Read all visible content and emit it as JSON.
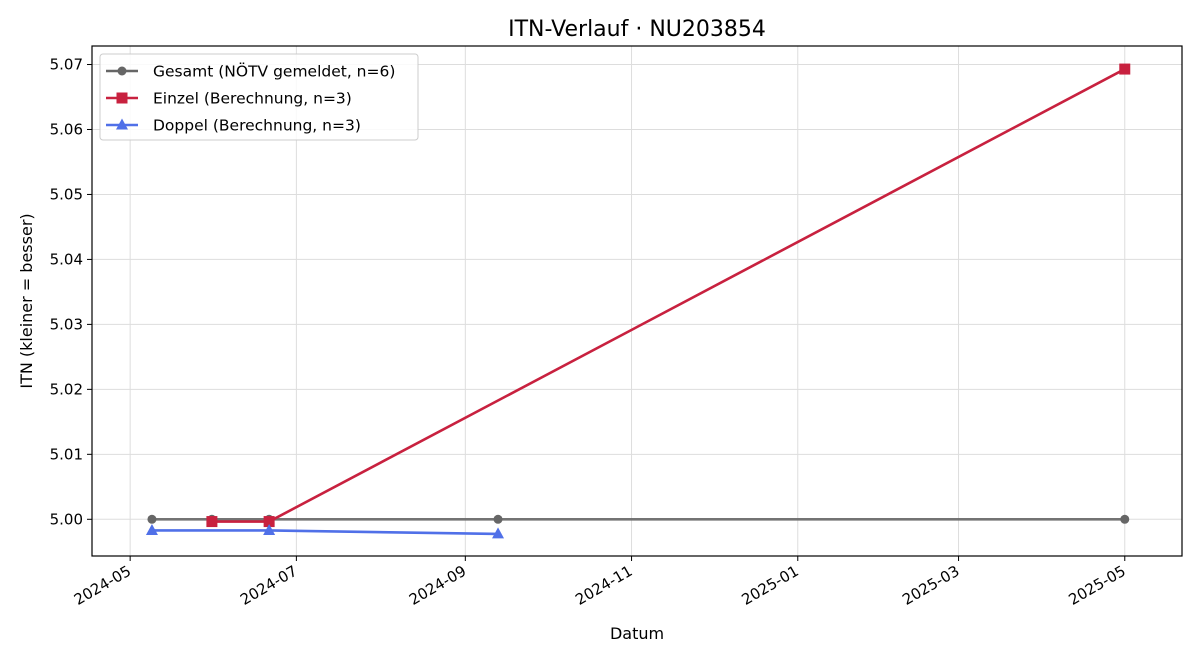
{
  "chart_data": {
    "type": "line",
    "title": "ITN-Verlauf · NU203854",
    "xlabel": "Datum",
    "ylabel": "ITN  (kleiner = besser)",
    "x_type": "date",
    "xlim": [
      "2024-04-17",
      "2025-05-22"
    ],
    "ylim": [
      4.99435,
      5.07285
    ],
    "x_ticks": [
      "2024-05-01",
      "2024-07-01",
      "2024-09-01",
      "2024-11-01",
      "2025-01-01",
      "2025-03-01",
      "2025-05-01"
    ],
    "x_tick_labels": [
      "2024-05",
      "2024-07",
      "2024-09",
      "2024-11",
      "2025-01",
      "2025-03",
      "2025-05"
    ],
    "y_ticks": [
      5.0,
      5.01,
      5.02,
      5.03,
      5.04,
      5.05,
      5.06,
      5.07
    ],
    "y_tick_labels": [
      "5.00",
      "5.01",
      "5.02",
      "5.03",
      "5.04",
      "5.05",
      "5.06",
      "5.07"
    ],
    "grid": true,
    "legend_position": "top-left",
    "series": [
      {
        "name": "Gesamt (NÖTV gemeldet, n=6)",
        "color": "#666666",
        "marker": "circle",
        "x": [
          "2024-05-09",
          "2024-05-31",
          "2024-06-21",
          "2024-09-13",
          "2025-05-01"
        ],
        "y": [
          5.0,
          5.0,
          5.0,
          5.0,
          5.0
        ]
      },
      {
        "name": "Einzel (Berechnung, n=3)",
        "color": "#c8213f",
        "marker": "square",
        "x": [
          "2024-05-31",
          "2024-06-21",
          "2025-05-01"
        ],
        "y": [
          4.99965,
          4.99965,
          5.0693
        ]
      },
      {
        "name": "Doppel (Berechnung, n=3)",
        "color": "#5070e8",
        "marker": "triangle",
        "x": [
          "2024-05-09",
          "2024-06-21",
          "2024-09-13"
        ],
        "y": [
          4.99828,
          4.99828,
          4.99775
        ]
      }
    ]
  }
}
